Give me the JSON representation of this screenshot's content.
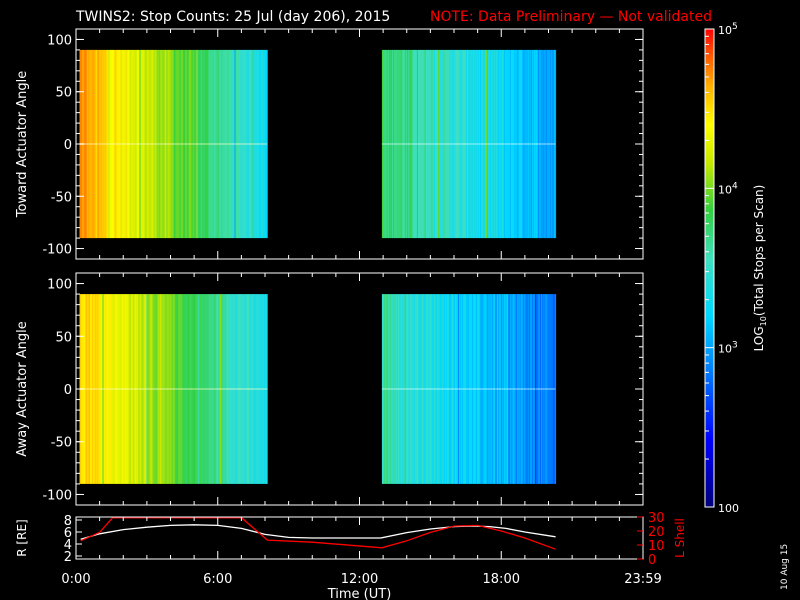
{
  "header": {
    "title": "TWINS2: Stop Counts: 25 Jul (day 206), 2015",
    "note": "NOTE: Data Preliminary — Not validated",
    "title_color": "#ffffff",
    "note_color": "#ff0000"
  },
  "footer": {
    "date_stamp": "10 Aug 15"
  },
  "chart_data": [
    {
      "type": "heatmap",
      "ylabel": "Toward Actuator Angle",
      "xlim_hours": [
        0,
        24
      ],
      "ylim": [
        -110,
        110
      ],
      "yticks": [
        100,
        50,
        0,
        -50,
        -100
      ],
      "ytick_labels": [
        "100",
        "50",
        "0",
        "-50",
        "-100"
      ],
      "data_extent_y": [
        -90,
        90
      ],
      "segments": [
        {
          "start_hour": 0.15,
          "end_hour": 8.1,
          "log_from": 4.7,
          "log_to": 3.3
        },
        {
          "start_hour": 12.95,
          "end_hour": 20.3,
          "log_from": 3.8,
          "log_to": 3.0
        }
      ]
    },
    {
      "type": "heatmap",
      "ylabel": "Away Actuator Angle",
      "xlim_hours": [
        0,
        24
      ],
      "ylim": [
        -110,
        110
      ],
      "yticks": [
        100,
        50,
        0,
        -50,
        -100
      ],
      "ytick_labels": [
        "100",
        "50",
        "0",
        "-50",
        "-100"
      ],
      "data_extent_y": [
        -90,
        90
      ],
      "segments": [
        {
          "start_hour": 0.15,
          "end_hour": 8.1,
          "log_from": 4.6,
          "log_to": 3.3
        },
        {
          "start_hour": 12.95,
          "end_hour": 20.3,
          "log_from": 3.6,
          "log_to": 2.8
        }
      ]
    },
    {
      "type": "line",
      "ylabel_left": "R [RE]",
      "ylabel_right": "L Shell",
      "xlabel": "Time (UT)",
      "x_ticks_hours": [
        0,
        6,
        12,
        18,
        24
      ],
      "x_tick_labels": [
        "0:00",
        "6:00",
        "12:00",
        "18:00",
        "23:59"
      ],
      "left_ylim": [
        1.5,
        8.5
      ],
      "left_yticks": [
        2,
        4,
        6,
        8
      ],
      "left_ytick_labels": [
        "2",
        "4",
        "6",
        "8"
      ],
      "right_ylim": [
        0,
        30
      ],
      "right_yticks": [
        0,
        10,
        20,
        30
      ],
      "right_ytick_labels": [
        "0",
        "10",
        "20",
        "30"
      ],
      "series": [
        {
          "name": "R",
          "color": "#ffffff",
          "axis": "left",
          "x": [
            0.2,
            1.0,
            2.0,
            3.0,
            4.0,
            5.0,
            6.0,
            7.0,
            8.0,
            9.0,
            10.0,
            11.0,
            12.0,
            12.9,
            14.0,
            15.0,
            16.0,
            16.8,
            17.5,
            18.2,
            19.0,
            20.3
          ],
          "y": [
            4.8,
            5.7,
            6.4,
            6.8,
            7.1,
            7.2,
            7.1,
            6.6,
            5.6,
            5.1,
            5.0,
            5.0,
            5.0,
            5.0,
            5.9,
            6.5,
            6.9,
            7.0,
            6.9,
            6.6,
            6.0,
            5.2
          ]
        },
        {
          "name": "L Shell",
          "color": "#ff0000",
          "axis": "right",
          "x": [
            0.2,
            1.0,
            1.55,
            7.0,
            8.1,
            10.0,
            12.95,
            14.0,
            15.0,
            16.0,
            17.0,
            18.0,
            19.0,
            20.3
          ],
          "y": [
            13,
            19,
            29.5,
            29.5,
            13.5,
            12.0,
            8.0,
            13.0,
            19.0,
            23.5,
            24.0,
            20.0,
            15.0,
            7.0
          ]
        }
      ]
    },
    {
      "type": "heatmap",
      "title": "colorbar",
      "label": "LOG10(Total Stops per Scan)",
      "range_log": [
        2,
        5
      ],
      "tick_labels": [
        {
          "log": 5,
          "label": "10^5"
        },
        {
          "log": 4,
          "label": "10^4"
        },
        {
          "log": 3,
          "label": "10^3"
        },
        {
          "log": 2,
          "label": "100"
        }
      ]
    }
  ]
}
